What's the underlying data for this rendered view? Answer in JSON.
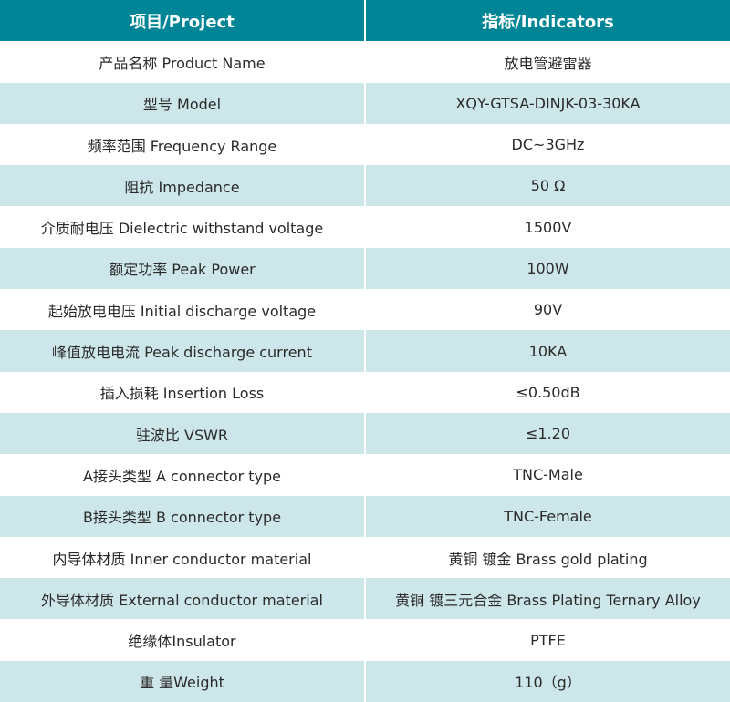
{
  "header": {
    "col1": "项目/Project",
    "col2": "指标/Indicators"
  },
  "colors": {
    "header_bg": "#008596",
    "alt_row_bg": "#cde6ea"
  },
  "rows": [
    {
      "project": "产品名称 Product Name",
      "indicator": "放电管避雷器"
    },
    {
      "project": "型号 Model",
      "indicator": "XQY-GTSA-DINJK-03-30KA"
    },
    {
      "project": "频率范围 Frequency Range",
      "indicator": "DC~3GHz"
    },
    {
      "project": "阻抗 Impedance",
      "indicator": "50 Ω"
    },
    {
      "project": "介质耐电压 Dielectric withstand voltage",
      "indicator": "1500V"
    },
    {
      "project": "额定功率 Peak Power",
      "indicator": "100W"
    },
    {
      "project": "起始放电电压 Initial discharge voltage",
      "indicator": "90V"
    },
    {
      "project": "峰值放电电流 Peak discharge current",
      "indicator": "10KA"
    },
    {
      "project": "插入损耗 Insertion Loss",
      "indicator": "≤0.50dB"
    },
    {
      "project": "驻波比 VSWR",
      "indicator": "≤1.20"
    },
    {
      "project": "A接头类型 A connector type",
      "indicator": "TNC-Male"
    },
    {
      "project": "B接头类型 B connector type",
      "indicator": "TNC-Female"
    },
    {
      "project": "内导体材质 Inner conductor material",
      "indicator": "黄铜 镀金 Brass gold plating"
    },
    {
      "project": "外导体材质 External conductor material",
      "indicator": "黄铜 镀三元合金 Brass Plating Ternary Alloy"
    },
    {
      "project": "绝缘体Insulator",
      "indicator": "PTFE"
    },
    {
      "project": "重 量Weight",
      "indicator": "110（g）"
    }
  ]
}
